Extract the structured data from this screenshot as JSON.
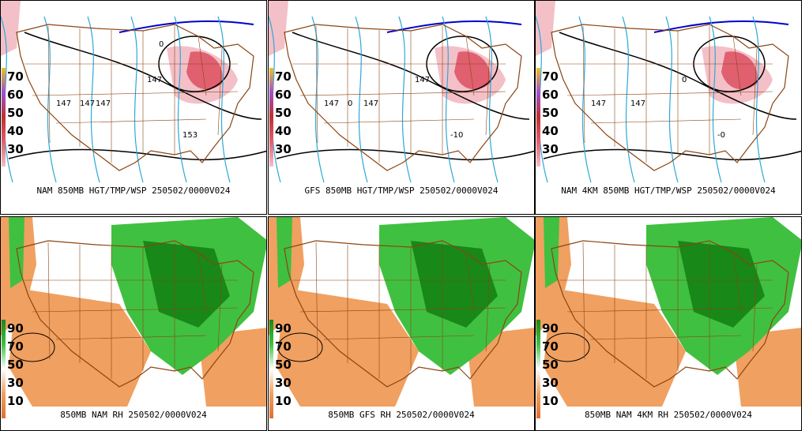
{
  "panels": [
    {
      "caption": "NAM 850MB HGT/TMP/WSP 250502/0000V024",
      "legend": [
        "70",
        "60",
        "50",
        "40",
        "30"
      ],
      "labels": [
        "147",
        "147",
        "147",
        "153",
        "147",
        "0"
      ],
      "kind": "wind"
    },
    {
      "caption": "GFS 850MB HGT/TMP/WSP 250502/0000V024",
      "legend": [
        "70",
        "60",
        "50",
        "40",
        "30"
      ],
      "labels": [
        "147",
        "147",
        "147",
        "-10",
        "0"
      ],
      "kind": "wind"
    },
    {
      "caption": "NAM 4KM 850MB HGT/TMP/WSP 250502/0000V024",
      "legend": [
        "70",
        "60",
        "50",
        "40",
        "30"
      ],
      "labels": [
        "147",
        "147",
        "0",
        "-0"
      ],
      "kind": "wind"
    },
    {
      "caption": "850MB NAM RH 250502/0000V024",
      "legend": [
        "90",
        "70",
        "50",
        "30",
        "10"
      ],
      "labels": [],
      "kind": "rh"
    },
    {
      "caption": "850MB GFS RH 250502/0000V024",
      "legend": [
        "90",
        "70",
        "50",
        "30",
        "10"
      ],
      "labels": [],
      "kind": "rh"
    },
    {
      "caption": "850MB NAM 4KM RH 250502/0000V024",
      "legend": [
        "90",
        "70",
        "50",
        "30",
        "10"
      ],
      "labels": [],
      "kind": "rh"
    }
  ],
  "colors": {
    "wind_legend": [
      "#f0c020",
      "#a050d0",
      "#c03030",
      "#e06070",
      "#f4c0c8"
    ],
    "rh_legend": [
      "#188818",
      "#40c040",
      "#ffffff",
      "#f0a060",
      "#e07030"
    ],
    "map_border": "#8b4513",
    "isotherm": "#2fa8d8",
    "height": "#000000",
    "freezing": "#0000cc"
  }
}
